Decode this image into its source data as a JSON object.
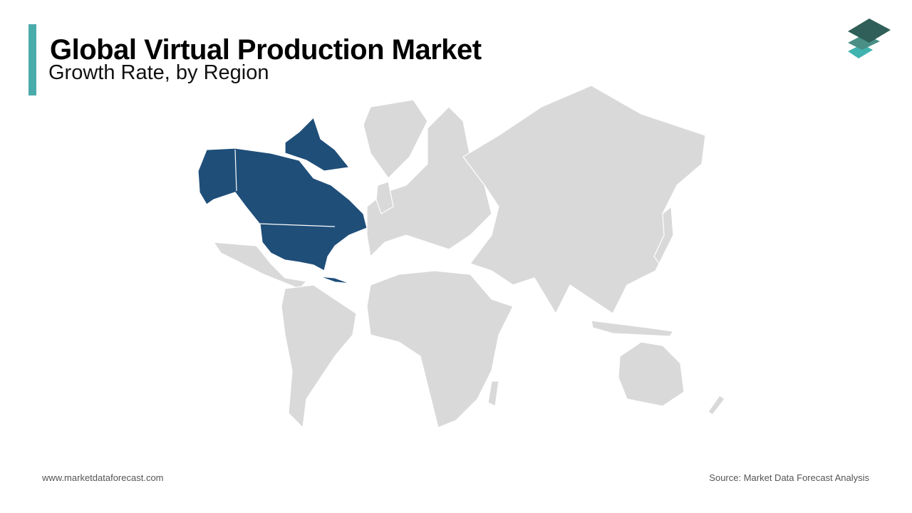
{
  "header": {
    "title": "Global Virtual Production Market",
    "subtitle": "Growth Rate, by Region"
  },
  "map": {
    "highlight_color": "#1f4e79",
    "base_color": "#d9d9d9",
    "accent_color": "#4aabab"
  },
  "footer": {
    "website": "www.marketdataforecast.com",
    "source": "Source: Market Data Forecast Analysis"
  }
}
